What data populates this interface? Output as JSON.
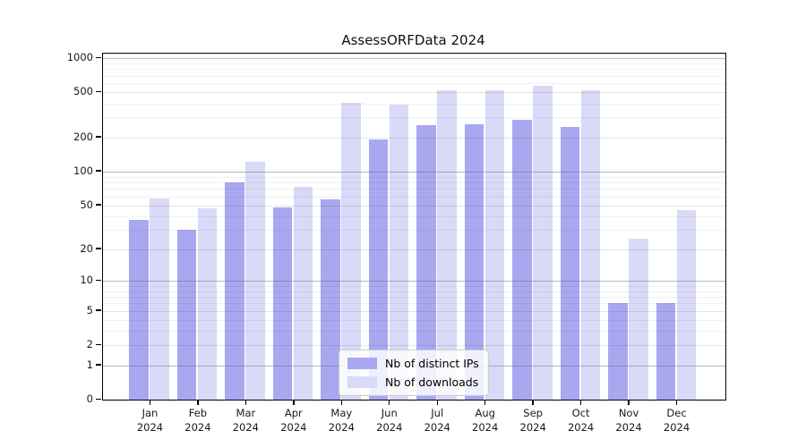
{
  "title": "AssessORFData 2024",
  "chart_data": {
    "type": "bar",
    "title": "AssessORFData 2024",
    "categories": [
      {
        "label": "Jan",
        "sublabel": "2024"
      },
      {
        "label": "Feb",
        "sublabel": "2024"
      },
      {
        "label": "Mar",
        "sublabel": "2024"
      },
      {
        "label": "Apr",
        "sublabel": "2024"
      },
      {
        "label": "May",
        "sublabel": "2024"
      },
      {
        "label": "Jun",
        "sublabel": "2024"
      },
      {
        "label": "Jul",
        "sublabel": "2024"
      },
      {
        "label": "Aug",
        "sublabel": "2024"
      },
      {
        "label": "Sep",
        "sublabel": "2024"
      },
      {
        "label": "Oct",
        "sublabel": "2024"
      },
      {
        "label": "Nov",
        "sublabel": "2024"
      },
      {
        "label": "Dec",
        "sublabel": "2024"
      }
    ],
    "series": [
      {
        "name": "Nb of distinct IPs",
        "color": "#a8a8f0",
        "values": [
          37,
          30,
          80,
          48,
          56,
          193,
          257,
          260,
          286,
          249,
          6,
          6
        ]
      },
      {
        "name": "Nb of downloads",
        "color": "#d9d9f8",
        "values": [
          58,
          47,
          123,
          73,
          408,
          389,
          523,
          526,
          576,
          520,
          25,
          45
        ]
      }
    ],
    "yticks": [
      0,
      1,
      2,
      5,
      10,
      20,
      50,
      100,
      200,
      500,
      1000
    ],
    "ylim": [
      0,
      1000
    ],
    "yscale": "log1p",
    "xlabel": "",
    "ylabel": "",
    "grid": true,
    "legend_position": "inside lower-center"
  }
}
